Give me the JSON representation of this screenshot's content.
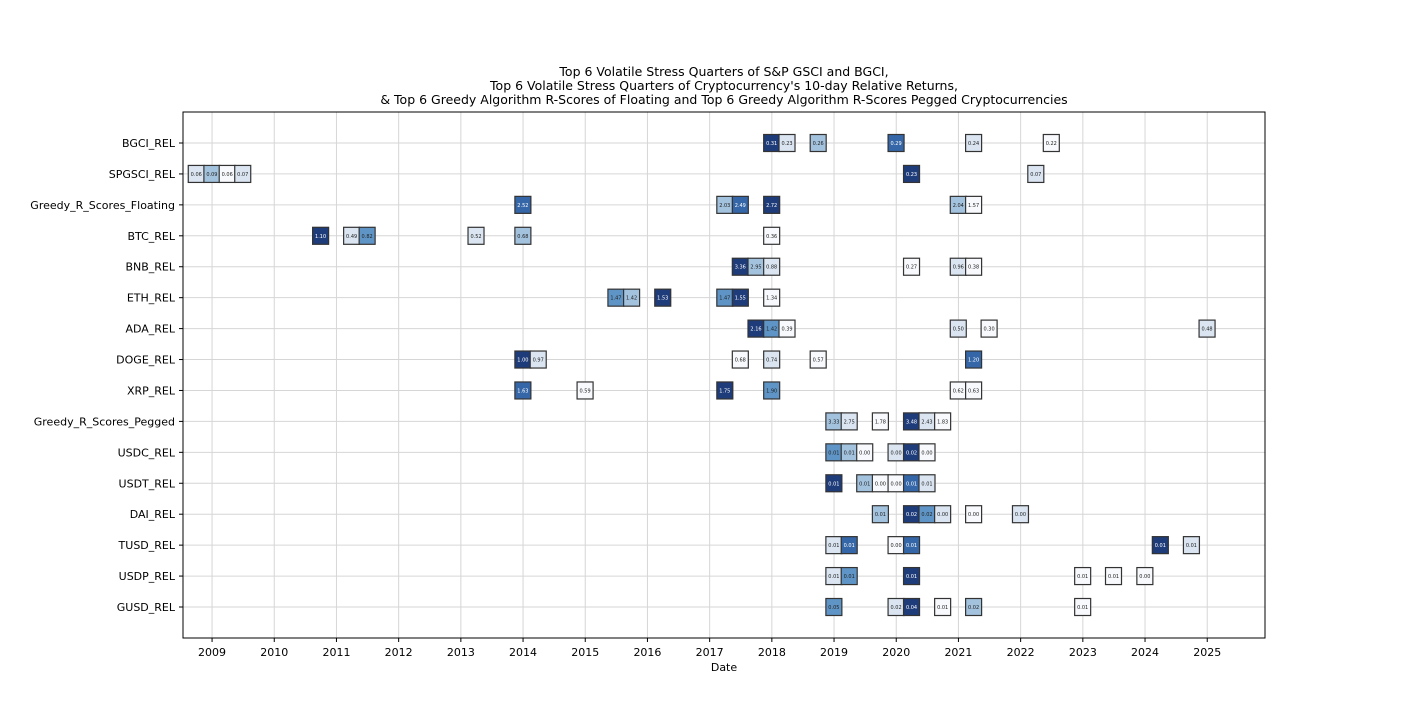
{
  "chart_data": {
    "type": "heatmap",
    "title_lines": [
      "Top 6 Volatile Stress Quarters of S&P GSCI and BGCI,",
      "Top 6 Volatile Stress Quarters of Cryptocurrency's 10-day Relative Returns,",
      "& Top 6 Greedy Algorithm R-Scores of Floating and Top 6 Greedy Algorithm R-Scores Pegged Cryptocurrencies"
    ],
    "xlabel": "Date",
    "ylabel": "",
    "xlim": [
      "2008-07-14",
      "2025-12-06"
    ],
    "x_ticks": [
      "2009",
      "2010",
      "2011",
      "2012",
      "2013",
      "2014",
      "2015",
      "2016",
      "2017",
      "2018",
      "2019",
      "2020",
      "2021",
      "2022",
      "2023",
      "2024",
      "2025"
    ],
    "grid": true,
    "colormap": "Blues",
    "shade_colors": {
      "d": "#1f3c7a",
      "m": "#3567a8",
      "lm": "#5f95c6",
      "l": "#a3c2dd",
      "vl": "#dae5f1",
      "w": "#f7f9fc"
    },
    "rows": [
      {
        "label": "BGCI_REL",
        "cells": [
          [
            "2017-12-31",
            0.31,
            "d"
          ],
          [
            "2018-03-31",
            0.23,
            "vl"
          ],
          [
            "2018-09-30",
            0.26,
            "l"
          ],
          [
            "2019-12-31",
            0.29,
            "m"
          ],
          [
            "2021-03-31",
            0.24,
            "vl"
          ],
          [
            "2022-06-30",
            0.22,
            "w"
          ]
        ]
      },
      {
        "label": "SPGSCI_REL",
        "cells": [
          [
            "2008-09-30",
            0.06,
            "vl"
          ],
          [
            "2008-12-31",
            0.09,
            "l"
          ],
          [
            "2009-03-31",
            0.06,
            "w"
          ],
          [
            "2009-06-30",
            0.07,
            "vl"
          ],
          [
            "2020-03-31",
            0.23,
            "d"
          ],
          [
            "2022-03-31",
            0.07,
            "vl"
          ]
        ]
      },
      {
        "label": "Greedy_R_Scores_Floating",
        "cells": [
          [
            "2013-12-31",
            2.52,
            "m"
          ],
          [
            "2017-03-31",
            2.03,
            "l"
          ],
          [
            "2017-06-30",
            2.49,
            "m"
          ],
          [
            "2017-12-31",
            2.72,
            "d"
          ],
          [
            "2020-12-31",
            2.04,
            "l"
          ],
          [
            "2021-03-31",
            1.57,
            "w"
          ]
        ]
      },
      {
        "label": "BTC_REL",
        "cells": [
          [
            "2010-09-30",
            1.1,
            "d"
          ],
          [
            "2011-03-31",
            0.49,
            "vl"
          ],
          [
            "2011-06-30",
            0.82,
            "lm"
          ],
          [
            "2013-03-31",
            0.52,
            "vl"
          ],
          [
            "2013-12-31",
            0.68,
            "l"
          ],
          [
            "2017-12-31",
            0.36,
            "w"
          ]
        ]
      },
      {
        "label": "BNB_REL",
        "cells": [
          [
            "2017-06-30",
            3.36,
            "d"
          ],
          [
            "2017-09-30",
            2.95,
            "l"
          ],
          [
            "2017-12-31",
            0.88,
            "vl"
          ],
          [
            "2020-03-31",
            0.27,
            "w"
          ],
          [
            "2020-12-31",
            0.96,
            "vl"
          ],
          [
            "2021-03-31",
            0.38,
            "w"
          ]
        ]
      },
      {
        "label": "ETH_REL",
        "cells": [
          [
            "2015-06-30",
            1.47,
            "lm"
          ],
          [
            "2015-09-30",
            1.42,
            "l"
          ],
          [
            "2016-03-31",
            1.53,
            "d"
          ],
          [
            "2017-03-31",
            1.47,
            "lm"
          ],
          [
            "2017-06-30",
            1.55,
            "d"
          ],
          [
            "2017-12-31",
            1.34,
            "w"
          ]
        ]
      },
      {
        "label": "ADA_REL",
        "cells": [
          [
            "2017-09-30",
            2.16,
            "d"
          ],
          [
            "2017-12-31",
            1.42,
            "lm"
          ],
          [
            "2018-03-31",
            0.39,
            "w"
          ],
          [
            "2020-12-31",
            0.5,
            "vl"
          ],
          [
            "2021-06-30",
            0.3,
            "w"
          ],
          [
            "2024-12-31",
            0.48,
            "vl"
          ]
        ]
      },
      {
        "label": "DOGE_REL",
        "cells": [
          [
            "2013-12-31",
            1.0,
            "d"
          ],
          [
            "2014-03-31",
            0.97,
            "vl"
          ],
          [
            "2017-06-30",
            0.68,
            "w"
          ],
          [
            "2017-12-31",
            0.74,
            "vl"
          ],
          [
            "2018-09-30",
            0.57,
            "w"
          ],
          [
            "2021-03-31",
            1.2,
            "m"
          ]
        ]
      },
      {
        "label": "XRP_REL",
        "cells": [
          [
            "2013-12-31",
            1.63,
            "m"
          ],
          [
            "2014-12-31",
            0.59,
            "w"
          ],
          [
            "2017-03-31",
            1.75,
            "d"
          ],
          [
            "2017-12-31",
            1.9,
            "lm"
          ],
          [
            "2020-12-31",
            0.62,
            "w"
          ],
          [
            "2021-03-31",
            0.63,
            "w"
          ]
        ]
      },
      {
        "label": "Greedy_R_Scores_Pegged",
        "cells": [
          [
            "2018-12-31",
            3.33,
            "l"
          ],
          [
            "2019-03-31",
            2.75,
            "vl"
          ],
          [
            "2019-09-30",
            1.78,
            "w"
          ],
          [
            "2020-03-31",
            3.48,
            "d"
          ],
          [
            "2020-06-30",
            2.43,
            "vl"
          ],
          [
            "2020-09-30",
            1.83,
            "w"
          ]
        ]
      },
      {
        "label": "USDC_REL",
        "cells": [
          [
            "2018-12-31",
            0.01,
            "lm"
          ],
          [
            "2019-03-31",
            0.01,
            "l"
          ],
          [
            "2019-06-30",
            0.0,
            "w"
          ],
          [
            "2019-12-31",
            0.0,
            "vl"
          ],
          [
            "2020-03-31",
            0.02,
            "d"
          ],
          [
            "2020-06-30",
            0.0,
            "w"
          ]
        ]
      },
      {
        "label": "USDT_REL",
        "cells": [
          [
            "2018-12-31",
            0.01,
            "d"
          ],
          [
            "2019-06-30",
            0.01,
            "l"
          ],
          [
            "2019-09-30",
            0.0,
            "w"
          ],
          [
            "2019-12-31",
            0.0,
            "w"
          ],
          [
            "2020-03-31",
            0.01,
            "m"
          ],
          [
            "2020-06-30",
            0.01,
            "vl"
          ]
        ]
      },
      {
        "label": "DAI_REL",
        "cells": [
          [
            "2019-09-30",
            0.01,
            "l"
          ],
          [
            "2020-03-31",
            0.02,
            "d"
          ],
          [
            "2020-06-30",
            0.02,
            "lm"
          ],
          [
            "2020-09-30",
            0.0,
            "vl"
          ],
          [
            "2021-03-31",
            0.0,
            "w"
          ],
          [
            "2021-12-31",
            0.0,
            "vl"
          ]
        ]
      },
      {
        "label": "TUSD_REL",
        "cells": [
          [
            "2018-12-31",
            0.01,
            "vl"
          ],
          [
            "2019-03-31",
            0.01,
            "m"
          ],
          [
            "2019-12-31",
            0.0,
            "w"
          ],
          [
            "2020-03-31",
            0.01,
            "m"
          ],
          [
            "2024-03-31",
            0.01,
            "d"
          ],
          [
            "2024-09-30",
            0.01,
            "vl"
          ]
        ]
      },
      {
        "label": "USDP_REL",
        "cells": [
          [
            "2018-12-31",
            0.01,
            "vl"
          ],
          [
            "2019-03-31",
            0.01,
            "lm"
          ],
          [
            "2020-03-31",
            0.01,
            "d"
          ],
          [
            "2022-12-31",
            0.01,
            "w"
          ],
          [
            "2023-06-30",
            0.01,
            "w"
          ],
          [
            "2023-12-31",
            0.0,
            "w"
          ]
        ]
      },
      {
        "label": "GUSD_REL",
        "cells": [
          [
            "2018-12-31",
            0.05,
            "lm"
          ],
          [
            "2019-12-31",
            0.02,
            "vl"
          ],
          [
            "2020-03-31",
            0.04,
            "d"
          ],
          [
            "2020-09-30",
            0.01,
            "w"
          ],
          [
            "2021-03-31",
            0.02,
            "l"
          ],
          [
            "2022-12-31",
            0.01,
            "w"
          ]
        ]
      }
    ]
  }
}
